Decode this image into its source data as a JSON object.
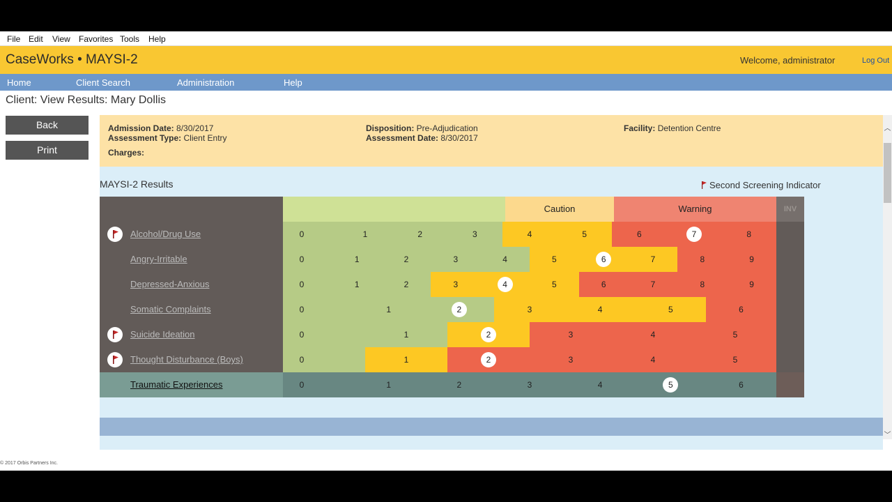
{
  "menu": [
    "File",
    "Edit",
    "View",
    "Favorites",
    "Tools",
    "Help"
  ],
  "app": {
    "title": "CaseWorks • MAYSI-2",
    "welcome": "Welcome, administrator",
    "logout": "Log Out"
  },
  "nav": [
    "Home",
    "Client Search",
    "Administration",
    "Help"
  ],
  "page_title": "Client: View Results: Mary Dollis",
  "buttons": {
    "back": "Back",
    "print": "Print"
  },
  "info": {
    "admission_label": "Admission Date:",
    "admission_value": "8/30/2017",
    "type_label": "Assessment Type:",
    "type_value": "Client Entry",
    "charges_label": "Charges:",
    "disposition_label": "Disposition:",
    "disposition_value": "Pre-Adjudication",
    "assessment_date_label": "Assessment Date:",
    "assessment_date_value": "8/30/2017",
    "facility_label": "Facility:",
    "facility_value": "Detention Centre"
  },
  "results": {
    "title": "MAYSI-2 Results",
    "second_screening": "Second Screening Indicator",
    "caution": "Caution",
    "warning": "Warning",
    "inv": "INV",
    "colors": {
      "green": "#b6cb86",
      "header_green": "#cfe196",
      "yellow": "#fdc823",
      "caution_header": "#fcd98d",
      "red": "#ed654c",
      "warning_header": "#ef8471",
      "dark": "#625b58",
      "trauma": "#688782"
    },
    "scales": [
      {
        "name": "Alcohol/Drug Use",
        "flag": true,
        "trauma": false,
        "numbers": [
          "0",
          "1",
          "2",
          "3",
          "4",
          "5",
          "6",
          "7",
          "8"
        ],
        "selected": 7,
        "segments": [
          {
            "color": "green",
            "from": 0,
            "to": 4
          },
          {
            "color": "yellow",
            "from": 4,
            "to": 6
          },
          {
            "color": "red",
            "from": 6,
            "to": 9
          }
        ]
      },
      {
        "name": "Angry-Irritable",
        "flag": false,
        "trauma": false,
        "numbers": [
          "0",
          "1",
          "2",
          "3",
          "4",
          "5",
          "6",
          "7",
          "8",
          "9"
        ],
        "selected": 6,
        "segments": [
          {
            "color": "green",
            "from": 0,
            "to": 5
          },
          {
            "color": "yellow",
            "from": 5,
            "to": 8
          },
          {
            "color": "red",
            "from": 8,
            "to": 10
          }
        ]
      },
      {
        "name": "Depressed-Anxious",
        "flag": false,
        "trauma": false,
        "numbers": [
          "0",
          "1",
          "2",
          "3",
          "4",
          "5",
          "6",
          "7",
          "8",
          "9"
        ],
        "selected": 4,
        "segments": [
          {
            "color": "green",
            "from": 0,
            "to": 3
          },
          {
            "color": "yellow",
            "from": 3,
            "to": 6
          },
          {
            "color": "red",
            "from": 6,
            "to": 10
          }
        ]
      },
      {
        "name": "Somatic Complaints",
        "flag": false,
        "trauma": false,
        "numbers": [
          "0",
          "1",
          "2",
          "3",
          "4",
          "5",
          "6"
        ],
        "selected": 2,
        "segments": [
          {
            "color": "green",
            "from": 0,
            "to": 3
          },
          {
            "color": "yellow",
            "from": 3,
            "to": 6
          },
          {
            "color": "red",
            "from": 6,
            "to": 7
          }
        ]
      },
      {
        "name": "Suicide Ideation",
        "flag": true,
        "trauma": false,
        "numbers": [
          "0",
          "1",
          "2",
          "3",
          "4",
          "5"
        ],
        "selected": 2,
        "segments": [
          {
            "color": "green",
            "from": 0,
            "to": 2
          },
          {
            "color": "yellow",
            "from": 2,
            "to": 3
          },
          {
            "color": "red",
            "from": 3,
            "to": 6
          }
        ]
      },
      {
        "name": "Thought Disturbance (Boys)",
        "flag": true,
        "trauma": false,
        "numbers": [
          "0",
          "1",
          "2",
          "3",
          "4",
          "5"
        ],
        "selected": 2,
        "segments": [
          {
            "color": "green",
            "from": 0,
            "to": 1
          },
          {
            "color": "yellow",
            "from": 1,
            "to": 2
          },
          {
            "color": "red",
            "from": 2,
            "to": 6
          }
        ]
      },
      {
        "name": "Traumatic Experiences",
        "flag": false,
        "trauma": true,
        "numbers": [
          "0",
          "1",
          "2",
          "3",
          "4",
          "5",
          "6"
        ],
        "selected": 5,
        "segments": [
          {
            "color": "trauma",
            "from": 0,
            "to": 7
          }
        ]
      }
    ]
  },
  "copyright": "© 2017 Orbis Partners Inc."
}
